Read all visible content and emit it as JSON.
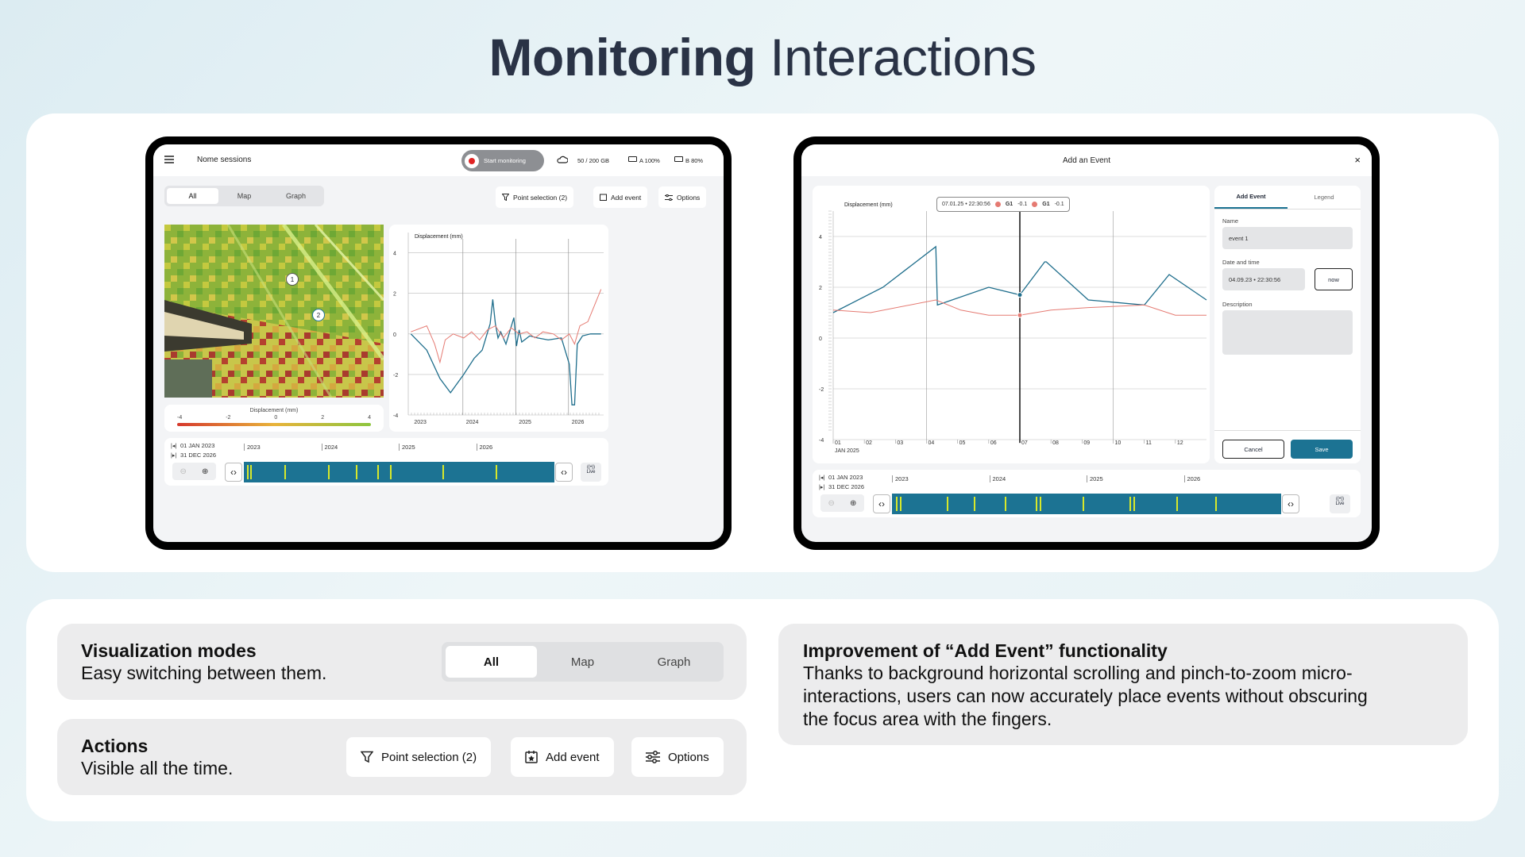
{
  "title": {
    "bold": "Monitoring",
    "rest": " Interactions"
  },
  "tablet1": {
    "menu_icon": "menu-icon",
    "session_name": "Nome sessions",
    "start_monitoring": "Start monitoring",
    "storage": "50 / 200 GB",
    "battery_a": "A 100%",
    "battery_b": "B 80%",
    "tabs": [
      "All",
      "Map",
      "Graph"
    ],
    "point_selection": "Point selection (2)",
    "add_event": "Add event",
    "options": "Options",
    "map_points": [
      "1",
      "2"
    ],
    "scale_title": "Displacement (mm)",
    "scale_ticks": [
      "-4",
      "-2",
      "0",
      "2",
      "4"
    ],
    "timeline_start": "01 JAN 2023",
    "timeline_end": "31 DEC 2026",
    "timeline_years": [
      "2023",
      "2024",
      "2025",
      "2026"
    ],
    "live": "Live"
  },
  "chart_data": [
    {
      "type": "line",
      "ylabel": "Displacement (mm)",
      "ylim": [
        -4,
        5
      ],
      "y_ticks": [
        "4",
        "2",
        "0",
        "-2",
        "-4"
      ],
      "x_ticks": [
        "2023",
        "2024",
        "2025",
        "2026"
      ],
      "series": [
        {
          "color": "#1f6e8c",
          "x": [
            2023.0,
            2023.3,
            2023.55,
            2023.75,
            2024.0,
            2024.2,
            2024.35,
            2024.5,
            2024.55,
            2024.6,
            2024.65,
            2024.7,
            2024.8,
            2024.95,
            2025.0,
            2025.05,
            2025.1,
            2025.25,
            2025.4,
            2025.6,
            2025.85,
            2026.0,
            2026.05,
            2026.1,
            2026.15,
            2026.25,
            2026.4,
            2026.6
          ],
          "values": [
            0,
            -0.8,
            -2.2,
            -2.9,
            -2.0,
            -1.2,
            -0.8,
            0.5,
            1.7,
            0.5,
            -0.2,
            0.1,
            -0.5,
            0.8,
            -0.6,
            0.2,
            -0.4,
            -0.1,
            -0.2,
            -0.3,
            -0.2,
            -1.5,
            -3.5,
            -3.5,
            -0.5,
            -0.1,
            0,
            0
          ]
        },
        {
          "color": "#e57a72",
          "x": [
            2023.0,
            2023.3,
            2023.45,
            2023.55,
            2023.65,
            2023.8,
            2024.0,
            2024.15,
            2024.3,
            2024.45,
            2024.6,
            2024.75,
            2024.9,
            2025.05,
            2025.2,
            2025.35,
            2025.5,
            2025.7,
            2025.85,
            2026.0,
            2026.1,
            2026.2,
            2026.35,
            2026.6
          ],
          "values": [
            0.1,
            0.4,
            -0.5,
            -1.4,
            -0.3,
            0.0,
            -0.2,
            0.1,
            -0.3,
            0.2,
            0.4,
            -0.2,
            0.3,
            0.0,
            0.1,
            -0.2,
            0.1,
            0.0,
            -0.3,
            0.0,
            -0.5,
            0.4,
            0.6,
            2.2
          ]
        }
      ]
    },
    {
      "type": "line",
      "ylabel": "Displacement (mm)",
      "ylim": [
        -4,
        5
      ],
      "y_ticks": [
        "4",
        "2",
        "0",
        "-2",
        "-4"
      ],
      "x_ticks": [
        "01",
        "02",
        "03",
        "04",
        "05",
        "06",
        "07",
        "08",
        "09",
        "10",
        "11",
        "12"
      ],
      "x_caption": "JAN 2025",
      "series": [
        {
          "color": "#1f6e8c",
          "x": [
            1,
            2.6,
            4.3,
            4.35,
            6.0,
            7.0,
            7.8,
            7.85,
            9.2,
            11.0,
            11.8,
            13.0
          ],
          "values": [
            1.0,
            2.0,
            3.6,
            1.3,
            2.0,
            1.7,
            3.0,
            3.0,
            1.5,
            1.3,
            2.5,
            1.5
          ]
        },
        {
          "color": "#e57a72",
          "x": [
            1,
            2.2,
            4.3,
            5.1,
            6.0,
            7.0,
            8.0,
            9.2,
            11.0,
            12.0,
            13.0
          ],
          "values": [
            1.1,
            1.0,
            1.5,
            1.1,
            0.9,
            0.9,
            1.1,
            1.2,
            1.3,
            0.9,
            0.9
          ]
        }
      ]
    }
  ],
  "tablet2": {
    "dialog_title": "Add an Event",
    "close_icon": "close-icon",
    "tooltip": {
      "date": "07.01.25 • 22:30:56",
      "g1a": "G1",
      "g1a_val": "-0.1",
      "g1b": "G1",
      "g1b_val": "-0.1"
    },
    "panel_tabs": [
      "Add Event",
      "Legend"
    ],
    "name_label": "Name",
    "name_value": "event 1",
    "datetime_label": "Date and time",
    "datetime_value": "04.09.23 • 22:30:56",
    "now_button": "now",
    "description_label": "Description",
    "cancel": "Cancel",
    "save": "Save",
    "timeline_start": "01 JAN 2023",
    "timeline_end": "31 DEC 2026",
    "timeline_years": [
      "2023",
      "2024",
      "2025",
      "2026"
    ],
    "live": "Live"
  },
  "features": {
    "viz_title": "Visualization modes",
    "viz_desc": "Easy switching between them.",
    "viz_tabs": [
      "All",
      "Map",
      "Graph"
    ],
    "actions_title": "Actions",
    "actions_desc": "Visible all the time.",
    "point_selection": "Point selection (2)",
    "add_event": "Add event",
    "options": "Options",
    "improve_title": "Improvement of “Add Event” functionality",
    "improve_desc": "Thanks to background horizontal scrolling and pinch-to-zoom micro-interactions, users can now accurately place events without obscuring the focus area with the fingers."
  },
  "colors": {
    "accent": "#1c7393",
    "record": "#e02424",
    "series_blue": "#1f6e8c",
    "series_red": "#e57a72",
    "marker": "#d8e82a"
  }
}
